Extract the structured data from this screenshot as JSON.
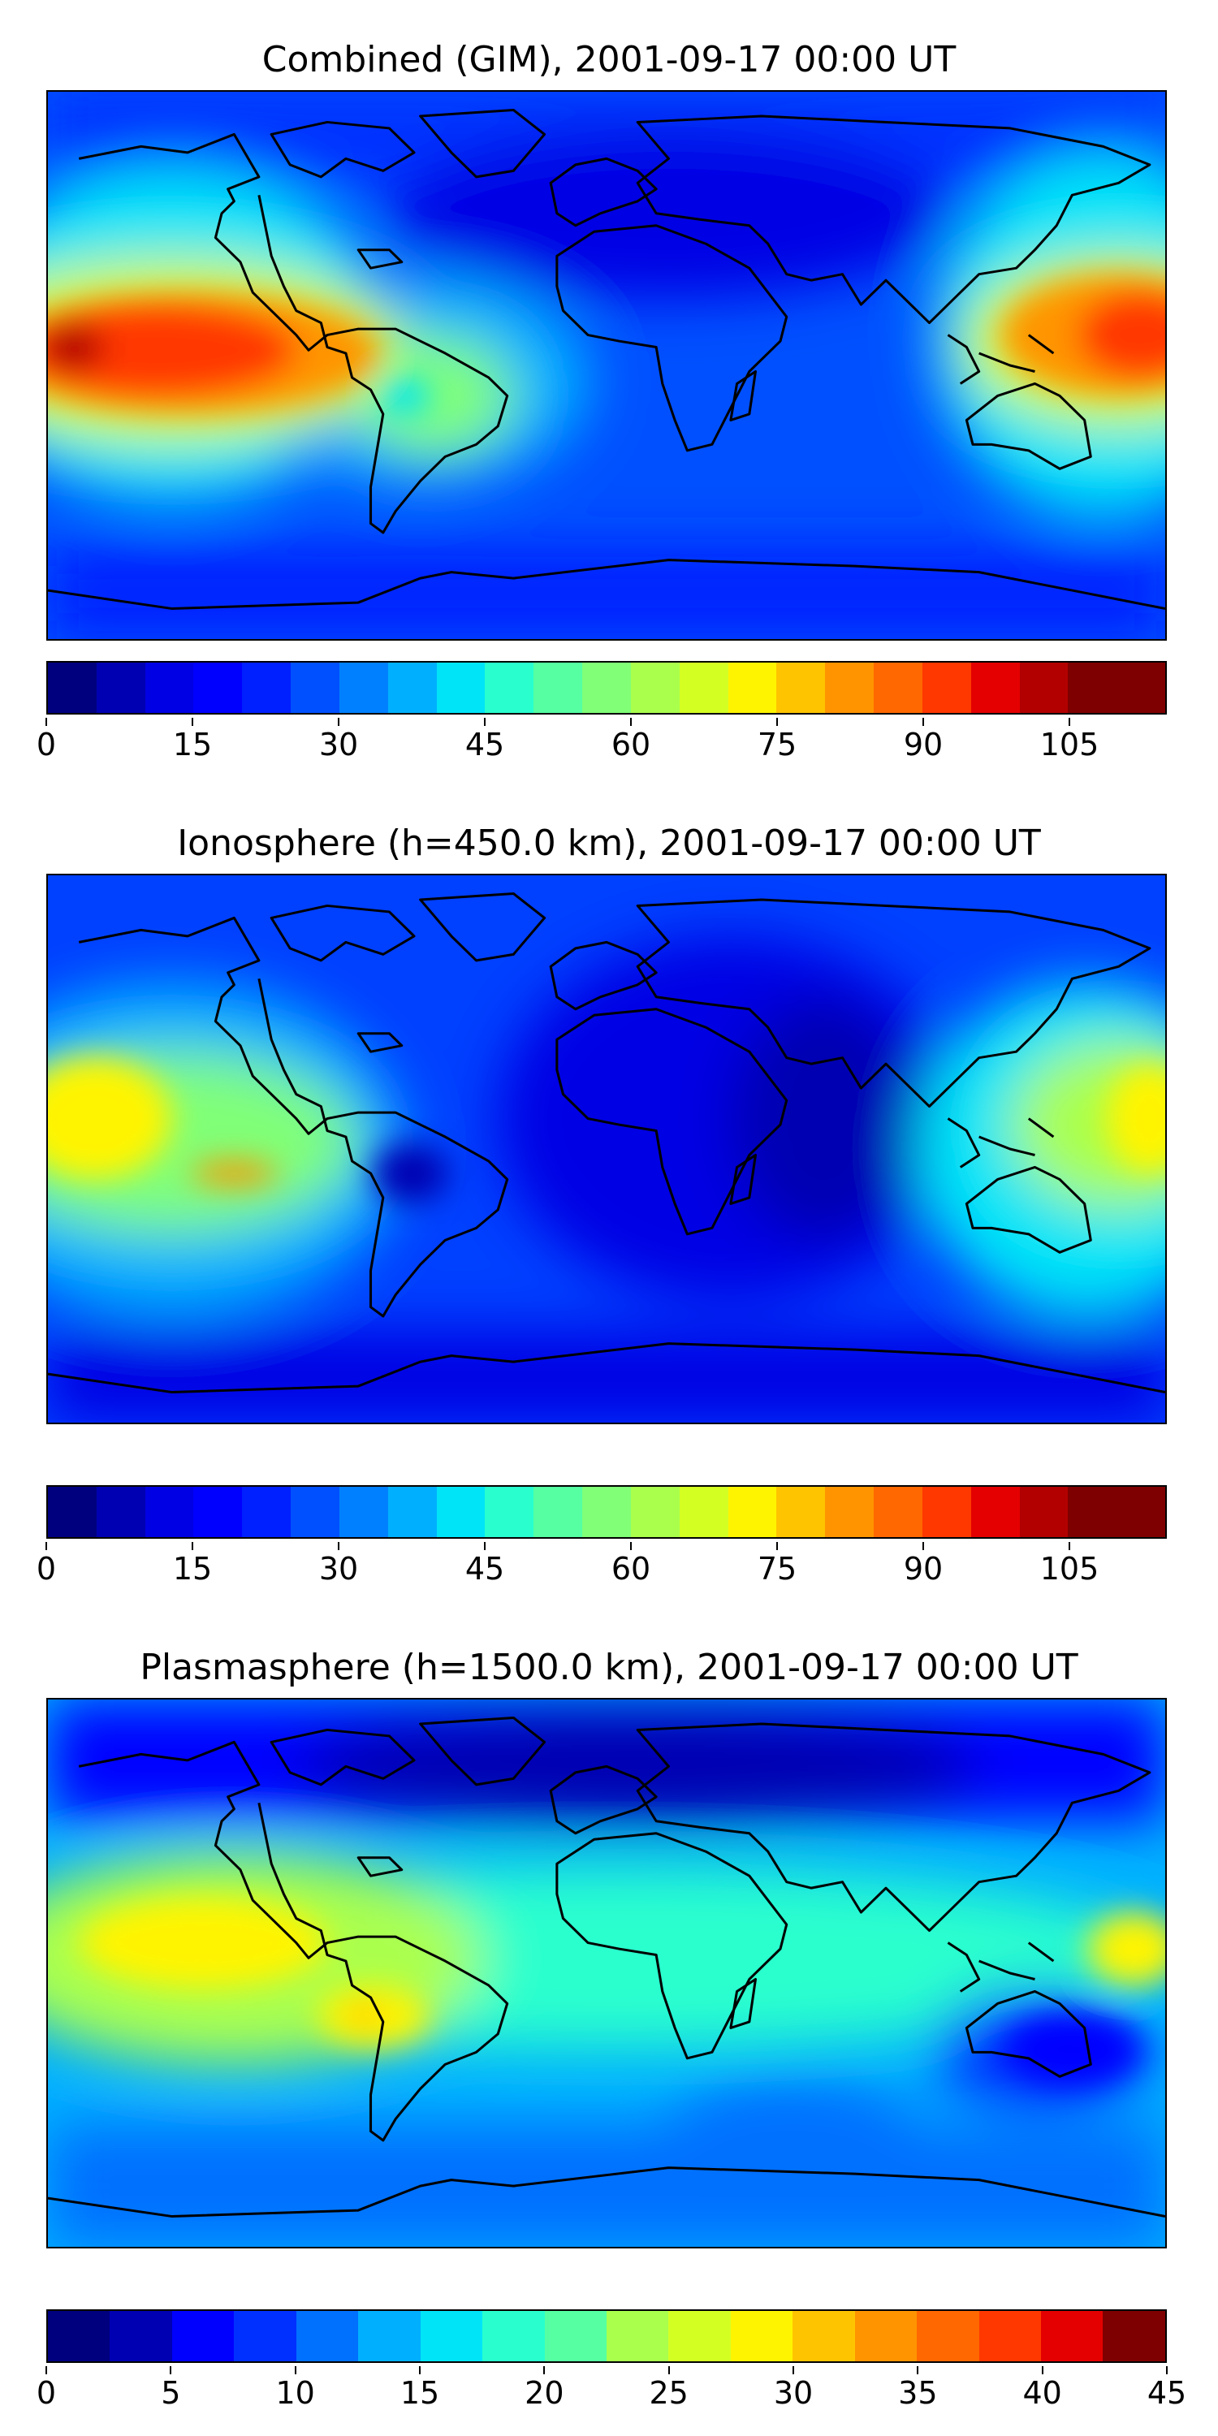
{
  "panels": [
    {
      "title": "Combined (GIM), 2001-09-17 00:00 UT",
      "colorbar": {
        "ticks": [
          "0",
          "15",
          "30",
          "45",
          "60",
          "75",
          "90",
          "105"
        ],
        "min": 0,
        "max": 115,
        "step": 5,
        "colors": [
          "#00007f",
          "#0000b2",
          "#0000e4",
          "#0000ff",
          "#0020ff",
          "#0050ff",
          "#0080ff",
          "#00b0ff",
          "#00e4f8",
          "#29ffce",
          "#55ffa2",
          "#80ff77",
          "#aaff4d",
          "#d4ff23",
          "#fff400",
          "#ffc400",
          "#ff9400",
          "#ff6800",
          "#ff3800",
          "#e40000",
          "#b20000",
          "#7f0000",
          "#7f0000"
        ]
      },
      "features": [
        {
          "kind": "high",
          "label": "Pacific equatorial maximum",
          "lon": -165,
          "lat": 5,
          "peak": 105
        },
        {
          "kind": "high",
          "label": "West Pacific maximum",
          "lon": 175,
          "lat": 2,
          "peak": 95
        },
        {
          "kind": "high",
          "label": "South America anomaly",
          "lon": -55,
          "lat": -5,
          "peak": 60
        },
        {
          "kind": "low",
          "label": "Eurasia / Africa",
          "lon": 40,
          "lat": 30,
          "peak": 10
        }
      ]
    },
    {
      "title": "Ionosphere  (h=450.0 km), 2001-09-17 00:00 UT",
      "colorbar": {
        "ticks": [
          "0",
          "15",
          "30",
          "45",
          "60",
          "75",
          "90",
          "105"
        ],
        "min": 0,
        "max": 115,
        "step": 5,
        "colors": [
          "#00007f",
          "#0000b2",
          "#0000e4",
          "#0000ff",
          "#0020ff",
          "#0050ff",
          "#0080ff",
          "#00b0ff",
          "#00e4f8",
          "#29ffce",
          "#55ffa2",
          "#80ff77",
          "#aaff4d",
          "#d4ff23",
          "#fff400",
          "#ffc400",
          "#ff9400",
          "#ff6800",
          "#ff3800",
          "#e40000",
          "#b20000",
          "#7f0000",
          "#7f0000"
        ]
      },
      "features": [
        {
          "kind": "high",
          "label": "Central Pacific maximum",
          "lon": -175,
          "lat": 10,
          "peak": 75
        },
        {
          "kind": "high",
          "label": "West Pacific maximum",
          "lon": 180,
          "lat": 5,
          "peak": 70
        },
        {
          "kind": "low",
          "label": "South America minimum",
          "lon": -63,
          "lat": -5,
          "peak": 10
        },
        {
          "kind": "low",
          "label": "Indian Ocean minimum",
          "lon": 70,
          "lat": -5,
          "peak": 5
        }
      ]
    },
    {
      "title": "Plasmasphere (h=1500.0 km), 2001-09-17 00:00 UT",
      "colorbar": {
        "ticks": [
          "0",
          "5",
          "10",
          "15",
          "20",
          "25",
          "30",
          "35",
          "40",
          "45"
        ],
        "min": 0,
        "max": 45,
        "step": 2.5,
        "colors": [
          "#00007f",
          "#0000b2",
          "#0000ff",
          "#0030ff",
          "#0070ff",
          "#00b0ff",
          "#00e4f8",
          "#29ffce",
          "#55ffa2",
          "#80ff77",
          "#aaff4d",
          "#d4ff23",
          "#fff400",
          "#ffc400",
          "#ff9400",
          "#ff6800",
          "#ff3800",
          "#e40000",
          "#7f0000"
        ]
      },
      "features": [
        {
          "kind": "high",
          "label": "Eastern Pacific maximum",
          "lon": -120,
          "lat": -5,
          "peak": 30
        },
        {
          "kind": "high",
          "label": "South America maximum",
          "lon": -65,
          "lat": -10,
          "peak": 33
        },
        {
          "kind": "low",
          "label": "Australia minimum",
          "lon": 135,
          "lat": -25,
          "peak": 8
        },
        {
          "kind": "low",
          "label": "Northern high latitudes",
          "lon": 20,
          "lat": 65,
          "peak": 5
        }
      ]
    }
  ]
}
